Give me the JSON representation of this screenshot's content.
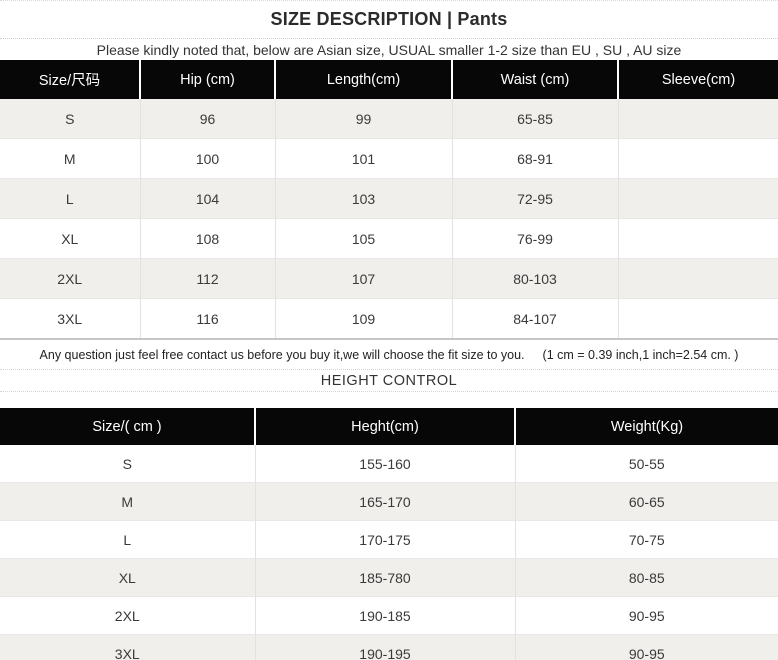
{
  "page": {
    "title": "SIZE DESCRIPTION | Pants",
    "notice": "Please kindly noted that, below are Asian size, USUAL smaller 1-2 size than EU , SU , AU size"
  },
  "size_table": {
    "headers": [
      "Size/尺码",
      "Hip (cm)",
      "Length(cm)",
      "Waist (cm)",
      "Sleeve(cm)"
    ],
    "rows": [
      [
        "S",
        "96",
        "99",
        "65-85",
        ""
      ],
      [
        "M",
        "100",
        "101",
        "68-91",
        ""
      ],
      [
        "L",
        "104",
        "103",
        "72-95",
        ""
      ],
      [
        "XL",
        "108",
        "105",
        "76-99",
        ""
      ],
      [
        "2XL",
        "112",
        "107",
        "80-103",
        ""
      ],
      [
        "3XL",
        "116",
        "109",
        "84-107",
        ""
      ]
    ]
  },
  "note": {
    "text": "Any question just feel free contact us before you buy it,we will choose the fit size to you.",
    "conversion": "(1 cm = 0.39 inch,1 inch=2.54 cm. )",
    "height_control_heading": "HEIGHT CONTROL"
  },
  "height_table": {
    "headers": [
      "Size/( cm )",
      "Heght(cm)",
      "Weight(Kg)"
    ],
    "rows": [
      [
        "S",
        "155-160",
        "50-55"
      ],
      [
        "M",
        "165-170",
        "60-65"
      ],
      [
        "L",
        "170-175",
        "70-75"
      ],
      [
        "XL",
        "185-780",
        "80-85"
      ],
      [
        "2XL",
        "190-185",
        "90-95"
      ],
      [
        "3XL",
        "190-195",
        "90-95"
      ]
    ]
  },
  "colors": {
    "table_header_bg": "#070707",
    "table_header_text": "#ffffff",
    "alt_row_bg": "#f0efec",
    "row_bg": "#ffffff",
    "body_text": "#3a3a3a"
  }
}
